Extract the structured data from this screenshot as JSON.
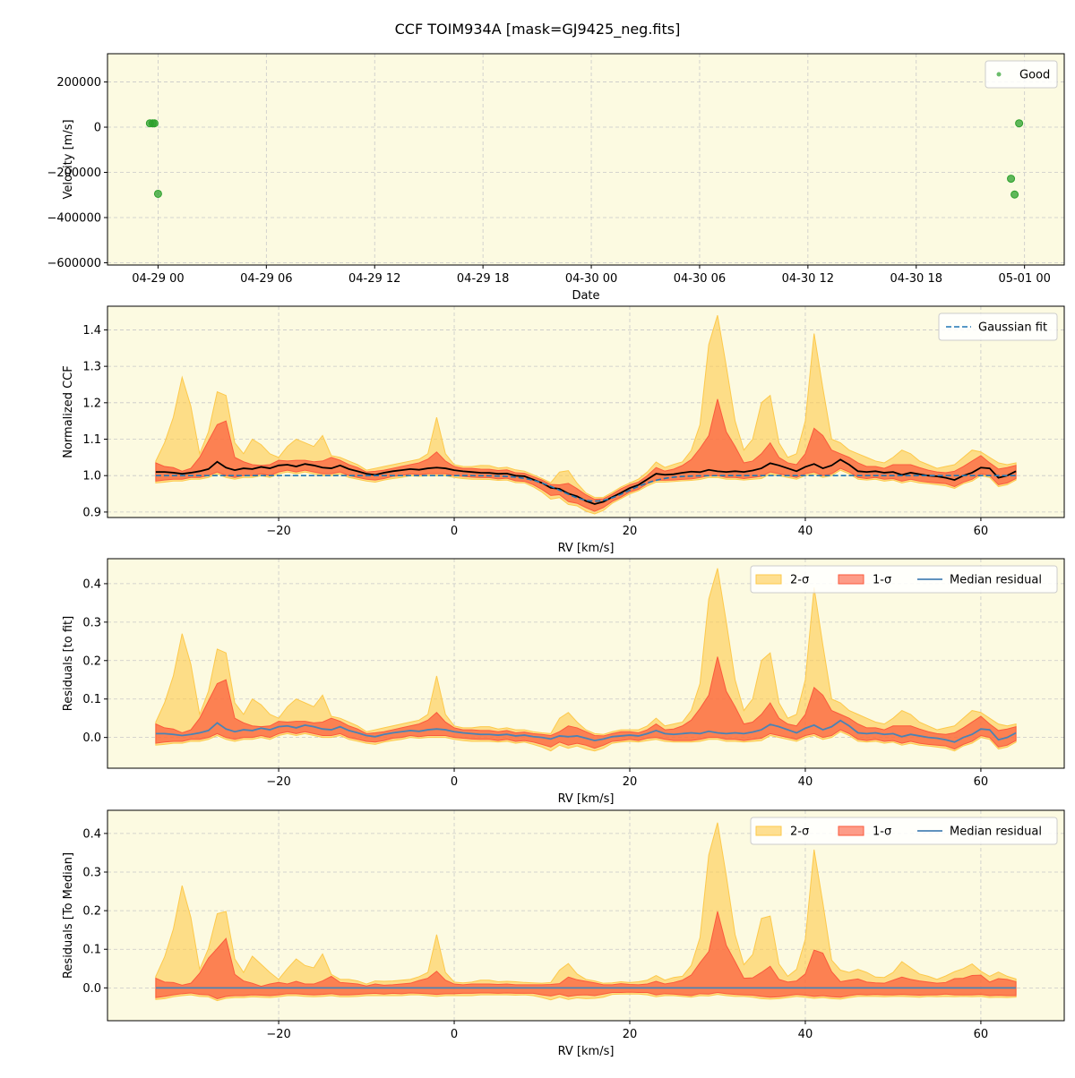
{
  "title": "CCF TOIM934A [mask=GJ9425_neg.fits]",
  "colors": {
    "panel_bg": "#fcfae1",
    "grid": "#c8c8c8",
    "good": "#2ca02c",
    "band2": "#fdc94b",
    "band1": "#fb5a3c",
    "ccf_line": "#000000",
    "gauss": "#1f77b4",
    "median": "#4a83b5"
  },
  "chart_data": [
    {
      "type": "scatter",
      "xlabel": "Date",
      "ylabel": "Velocity [m/s]",
      "x_tick_labels": [
        "04-29 00",
        "04-29 06",
        "04-29 12",
        "04-29 18",
        "04-30 00",
        "04-30 06",
        "04-30 12",
        "04-30 18",
        "05-01 00"
      ],
      "x_tick_hours": [
        0,
        6,
        12,
        18,
        24,
        30,
        36,
        42,
        48
      ],
      "xlim_hours": [
        -2.8,
        50.2
      ],
      "ylim": [
        -610000,
        325000
      ],
      "y_ticks": [
        200000,
        0,
        -200000,
        -400000,
        -600000
      ],
      "y_tick_labels": [
        "200000",
        "0",
        "−200000",
        "−400000",
        "−600000"
      ],
      "legend": {
        "placement": "top-right",
        "entries": [
          "Good"
        ]
      },
      "series": [
        {
          "name": "Good",
          "points": [
            {
              "x_hours": -0.45,
              "y": 17000
            },
            {
              "x_hours": -0.3,
              "y": 17000
            },
            {
              "x_hours": -0.2,
              "y": 17000
            },
            {
              "x_hours": 0.0,
              "y": -295000
            },
            {
              "x_hours": 47.25,
              "y": -228000
            },
            {
              "x_hours": 47.45,
              "y": -298000
            },
            {
              "x_hours": 47.7,
              "y": 17000
            }
          ]
        }
      ]
    },
    {
      "type": "line",
      "xlabel": "RV [km/s]",
      "ylabel": "Normalized CCF",
      "xlim": [
        -39.5,
        69.5
      ],
      "ylim": [
        0.885,
        1.465
      ],
      "x_ticks": [
        -20,
        0,
        20,
        40,
        60
      ],
      "x_tick_labels": [
        "−20",
        "0",
        "20",
        "40",
        "60"
      ],
      "y_ticks": [
        0.9,
        1.0,
        1.1,
        1.2,
        1.3,
        1.4
      ],
      "y_tick_labels": [
        "0.9",
        "1.0",
        "1.1",
        "1.2",
        "1.3",
        "1.4"
      ],
      "legend": {
        "placement": "top-right",
        "entries": [
          "Gaussian fit"
        ]
      },
      "baseline": 1.0,
      "gaussian": {
        "continuum": 1.0,
        "depth": 0.07,
        "center": 16.0,
        "sigma": 3.8
      },
      "series": [
        {
          "name": "Gaussian fit",
          "style": "dashed"
        }
      ]
    },
    {
      "type": "area",
      "xlabel": "RV [km/s]",
      "ylabel": "Residuals [to fit]",
      "xlim": [
        -39.5,
        69.5
      ],
      "ylim": [
        -0.08,
        0.465
      ],
      "x_ticks": [
        -20,
        0,
        20,
        40,
        60
      ],
      "x_tick_labels": [
        "−20",
        "0",
        "20",
        "40",
        "60"
      ],
      "y_ticks": [
        0.0,
        0.1,
        0.2,
        0.3,
        0.4
      ],
      "y_tick_labels": [
        "0.0",
        "0.1",
        "0.2",
        "0.3",
        "0.4"
      ],
      "legend": {
        "placement": "top-right",
        "entries": [
          "2-σ",
          "1-σ",
          "Median residual"
        ]
      },
      "baseline": 0.0,
      "series": [
        {
          "name": "2-σ"
        },
        {
          "name": "1-σ"
        },
        {
          "name": "Median residual"
        }
      ]
    },
    {
      "type": "area",
      "xlabel": "RV [km/s]",
      "ylabel": "Residuals [To Median]",
      "xlim": [
        -39.5,
        69.5
      ],
      "ylim": [
        -0.085,
        0.46
      ],
      "x_ticks": [
        -20,
        0,
        20,
        40,
        60
      ],
      "x_tick_labels": [
        "−20",
        "0",
        "20",
        "40",
        "60"
      ],
      "y_ticks": [
        0.0,
        0.1,
        0.2,
        0.3,
        0.4
      ],
      "y_tick_labels": [
        "0.0",
        "0.1",
        "0.2",
        "0.3",
        "0.4"
      ],
      "legend": {
        "placement": "top-right",
        "entries": [
          "2-σ",
          "1-σ",
          "Median residual"
        ]
      },
      "baseline": 0.0,
      "series": [
        {
          "name": "2-σ"
        },
        {
          "name": "1-σ"
        },
        {
          "name": "Median residual"
        }
      ]
    }
  ],
  "ccf_profile": {
    "rv": [
      -34,
      -33,
      -32,
      -31,
      -30,
      -29,
      -28,
      -27,
      -26,
      -25,
      -24,
      -23,
      -22,
      -21,
      -20,
      -19,
      -18,
      -17,
      -16,
      -15,
      -14,
      -13,
      -12,
      -11,
      -10,
      -9,
      -8,
      -7,
      -6,
      -5,
      -4,
      -3,
      -2,
      -1,
      0,
      1,
      2,
      3,
      4,
      5,
      6,
      7,
      8,
      9,
      10,
      11,
      12,
      13,
      14,
      15,
      16,
      17,
      18,
      19,
      20,
      21,
      22,
      23,
      24,
      25,
      26,
      27,
      28,
      29,
      30,
      31,
      32,
      33,
      34,
      35,
      36,
      37,
      38,
      39,
      40,
      41,
      42,
      43,
      44,
      45,
      46,
      47,
      48,
      49,
      50,
      51,
      52,
      53,
      54,
      55,
      56,
      57,
      58,
      59,
      60,
      61,
      62,
      63,
      64
    ],
    "median_residual": [
      0.01,
      0.01,
      0.008,
      0.005,
      0.008,
      0.012,
      0.018,
      0.038,
      0.022,
      0.015,
      0.02,
      0.018,
      0.024,
      0.02,
      0.028,
      0.03,
      0.025,
      0.032,
      0.028,
      0.022,
      0.02,
      0.028,
      0.018,
      0.012,
      0.005,
      0.002,
      0.008,
      0.012,
      0.015,
      0.018,
      0.016,
      0.02,
      0.022,
      0.02,
      0.015,
      0.012,
      0.01,
      0.008,
      0.008,
      0.006,
      0.008,
      0.004,
      0.006,
      0.002,
      0.0,
      -0.004,
      0.004,
      0.002,
      0.004,
      -0.002,
      -0.008,
      -0.004,
      0.002,
      0.004,
      0.006,
      0.004,
      0.01,
      0.018,
      0.01,
      0.008,
      0.01,
      0.012,
      0.01,
      0.016,
      0.012,
      0.01,
      0.012,
      0.01,
      0.014,
      0.02,
      0.034,
      0.028,
      0.02,
      0.012,
      0.024,
      0.032,
      0.02,
      0.028,
      0.044,
      0.03,
      0.012,
      0.01,
      0.012,
      0.008,
      0.01,
      0.002,
      0.008,
      0.004,
      0.0,
      -0.002,
      -0.006,
      -0.012,
      0.0,
      0.008,
      0.022,
      0.02,
      -0.006,
      0.0,
      0.012
    ],
    "band1_upper": [
      0.035,
      0.025,
      0.022,
      0.012,
      0.02,
      0.05,
      0.095,
      0.14,
      0.15,
      0.05,
      0.038,
      0.03,
      0.028,
      0.03,
      0.042,
      0.04,
      0.042,
      0.042,
      0.038,
      0.04,
      0.05,
      0.042,
      0.03,
      0.022,
      0.01,
      0.012,
      0.015,
      0.02,
      0.025,
      0.03,
      0.035,
      0.045,
      0.065,
      0.04,
      0.025,
      0.02,
      0.02,
      0.018,
      0.018,
      0.015,
      0.018,
      0.012,
      0.014,
      0.01,
      0.008,
      0.005,
      0.015,
      0.03,
      0.025,
      0.015,
      0.005,
      0.004,
      0.01,
      0.015,
      0.015,
      0.012,
      0.02,
      0.035,
      0.02,
      0.022,
      0.03,
      0.045,
      0.075,
      0.11,
      0.21,
      0.12,
      0.08,
      0.035,
      0.04,
      0.06,
      0.09,
      0.05,
      0.035,
      0.03,
      0.06,
      0.13,
      0.11,
      0.07,
      0.06,
      0.05,
      0.035,
      0.025,
      0.025,
      0.02,
      0.03,
      0.03,
      0.03,
      0.022,
      0.015,
      0.01,
      0.008,
      0.012,
      0.025,
      0.04,
      0.055,
      0.035,
      0.018,
      0.022,
      0.028
    ],
    "band1_lower": [
      -0.015,
      -0.012,
      -0.01,
      -0.01,
      -0.005,
      -0.005,
      0.0,
      0.01,
      0.0,
      -0.005,
      0.0,
      0.0,
      0.005,
      0.0,
      0.01,
      0.015,
      0.01,
      0.015,
      0.01,
      0.005,
      0.005,
      0.01,
      0.0,
      -0.005,
      -0.01,
      -0.012,
      -0.008,
      -0.002,
      0.0,
      0.005,
      0.002,
      0.005,
      0.005,
      0.005,
      0.0,
      -0.002,
      -0.004,
      -0.005,
      -0.005,
      -0.008,
      -0.005,
      -0.01,
      -0.008,
      -0.012,
      -0.018,
      -0.025,
      -0.012,
      -0.02,
      -0.015,
      -0.02,
      -0.028,
      -0.02,
      -0.01,
      -0.008,
      -0.005,
      -0.008,
      -0.002,
      0.0,
      -0.005,
      -0.008,
      -0.008,
      -0.008,
      -0.005,
      0.0,
      0.0,
      -0.005,
      -0.005,
      -0.008,
      -0.005,
      -0.002,
      0.01,
      0.005,
      0.0,
      -0.005,
      0.005,
      0.01,
      0.0,
      0.005,
      0.02,
      0.01,
      -0.005,
      -0.008,
      -0.005,
      -0.01,
      -0.008,
      -0.015,
      -0.01,
      -0.015,
      -0.018,
      -0.02,
      -0.022,
      -0.03,
      -0.018,
      -0.01,
      0.005,
      0.0,
      -0.025,
      -0.02,
      -0.008
    ],
    "band2_upper": [
      0.04,
      0.09,
      0.16,
      0.27,
      0.19,
      0.06,
      0.12,
      0.23,
      0.22,
      0.09,
      0.06,
      0.1,
      0.085,
      0.06,
      0.05,
      0.08,
      0.1,
      0.09,
      0.08,
      0.11,
      0.055,
      0.05,
      0.04,
      0.03,
      0.015,
      0.02,
      0.025,
      0.03,
      0.035,
      0.04,
      0.045,
      0.06,
      0.16,
      0.06,
      0.03,
      0.025,
      0.025,
      0.028,
      0.028,
      0.022,
      0.025,
      0.02,
      0.02,
      0.015,
      0.012,
      0.01,
      0.05,
      0.065,
      0.04,
      0.02,
      0.01,
      0.008,
      0.015,
      0.02,
      0.02,
      0.02,
      0.03,
      0.05,
      0.03,
      0.035,
      0.04,
      0.07,
      0.14,
      0.36,
      0.44,
      0.3,
      0.15,
      0.07,
      0.1,
      0.2,
      0.22,
      0.09,
      0.05,
      0.06,
      0.15,
      0.39,
      0.24,
      0.1,
      0.09,
      0.07,
      0.06,
      0.05,
      0.04,
      0.035,
      0.05,
      0.07,
      0.06,
      0.04,
      0.03,
      0.02,
      0.025,
      0.03,
      0.05,
      0.07,
      0.065,
      0.05,
      0.035,
      0.03,
      0.035
    ],
    "band2_lower": [
      -0.02,
      -0.018,
      -0.015,
      -0.015,
      -0.01,
      -0.01,
      -0.005,
      0.005,
      -0.005,
      -0.01,
      -0.005,
      -0.005,
      0.0,
      -0.005,
      0.005,
      0.01,
      0.005,
      0.01,
      0.005,
      0.0,
      0.0,
      0.005,
      -0.005,
      -0.01,
      -0.015,
      -0.018,
      -0.012,
      -0.008,
      -0.005,
      0.0,
      -0.002,
      0.0,
      0.0,
      0.0,
      -0.005,
      -0.008,
      -0.01,
      -0.01,
      -0.01,
      -0.012,
      -0.01,
      -0.015,
      -0.012,
      -0.018,
      -0.025,
      -0.035,
      -0.02,
      -0.028,
      -0.022,
      -0.03,
      -0.035,
      -0.028,
      -0.015,
      -0.012,
      -0.01,
      -0.012,
      -0.008,
      -0.005,
      -0.01,
      -0.012,
      -0.012,
      -0.012,
      -0.01,
      -0.005,
      -0.005,
      -0.01,
      -0.01,
      -0.012,
      -0.01,
      -0.008,
      0.005,
      0.0,
      -0.005,
      -0.01,
      0.0,
      0.005,
      -0.005,
      0.0,
      0.015,
      0.005,
      -0.01,
      -0.012,
      -0.01,
      -0.015,
      -0.012,
      -0.02,
      -0.015,
      -0.02,
      -0.022,
      -0.025,
      -0.028,
      -0.035,
      -0.022,
      -0.015,
      0.0,
      -0.005,
      -0.03,
      -0.025,
      -0.012
    ]
  }
}
